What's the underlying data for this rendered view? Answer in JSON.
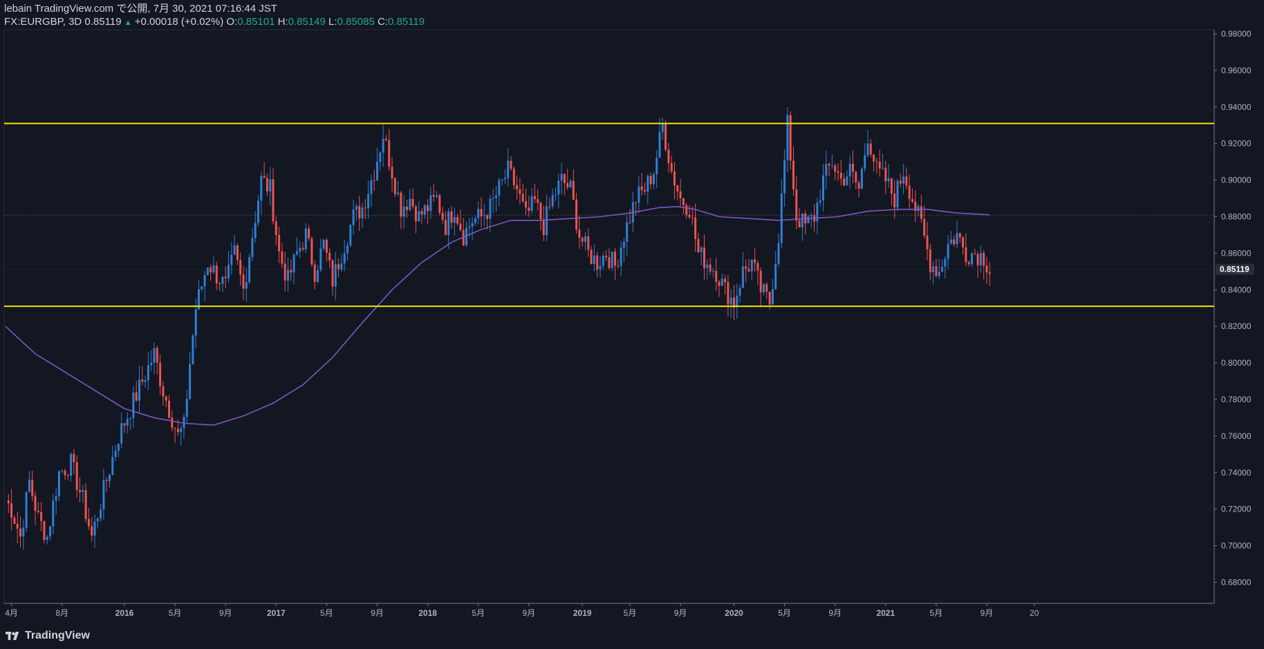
{
  "header": {
    "line1": "lebain TradingView.com で公開, 7月 30, 2021 07:16:44 JST",
    "symbol": "FX:EURGBP, 3D 0.85119",
    "change_icon": "▲",
    "change": "+0.00018 (+0.02%)",
    "o_label": "O:",
    "o_value": "0.85101",
    "h_label": "H:",
    "h_value": "0.85149",
    "l_label": "L:",
    "l_value": "0.85085",
    "c_label": "C:",
    "c_value": "0.85119"
  },
  "footer": {
    "brand": "TradingView",
    "logo_icon": "tradingview-logo-icon"
  },
  "colors": {
    "background": "#131722",
    "up": "#2f7fd6",
    "down": "#ef5350",
    "ma": "#7e57c2",
    "hline": "#f5e400",
    "axis_text": "#b2b5be",
    "price_tag": "#2a2e39"
  },
  "chart_data": {
    "type": "candlestick",
    "symbol": "FX:EURGBP",
    "timeframe": "3D",
    "ylim": [
      0.67,
      0.985
    ],
    "y_ticks": [
      "0.98000",
      "0.96000",
      "0.94000",
      "0.92000",
      "0.90000",
      "0.88000",
      "0.86000",
      "0.84000",
      "0.82000",
      "0.80000",
      "0.78000",
      "0.76000",
      "0.74000",
      "0.72000",
      "0.70000",
      "0.68000"
    ],
    "x_ticks": [
      "4月",
      "8月",
      "2016",
      "5月",
      "9月",
      "2017",
      "5月",
      "9月",
      "2018",
      "5月",
      "9月",
      "2019",
      "5月",
      "9月",
      "2020",
      "5月",
      "9月",
      "2021",
      "5月",
      "9月",
      "20"
    ],
    "current_price": "0.85119",
    "horizontal_lines": [
      0.931,
      0.831
    ],
    "dotted_levels": [
      0.8808
    ],
    "close_path": [
      [
        0,
        0.725
      ],
      [
        2,
        0.72
      ],
      [
        5,
        0.705
      ],
      [
        8,
        0.735
      ],
      [
        11,
        0.715
      ],
      [
        14,
        0.705
      ],
      [
        18,
        0.74
      ],
      [
        22,
        0.745
      ],
      [
        26,
        0.725
      ],
      [
        29,
        0.705
      ],
      [
        33,
        0.73
      ],
      [
        38,
        0.76
      ],
      [
        42,
        0.775
      ],
      [
        46,
        0.79
      ],
      [
        50,
        0.805
      ],
      [
        53,
        0.785
      ],
      [
        56,
        0.77
      ],
      [
        58,
        0.76
      ],
      [
        60,
        0.765
      ],
      [
        62,
        0.8
      ],
      [
        64,
        0.83
      ],
      [
        68,
        0.855
      ],
      [
        71,
        0.848
      ],
      [
        74,
        0.842
      ],
      [
        77,
        0.86
      ],
      [
        80,
        0.84
      ],
      [
        83,
        0.87
      ],
      [
        86,
        0.9
      ],
      [
        89,
        0.895
      ],
      [
        92,
        0.86
      ],
      [
        95,
        0.845
      ],
      [
        98,
        0.86
      ],
      [
        101,
        0.87
      ],
      [
        104,
        0.85
      ],
      [
        107,
        0.865
      ],
      [
        110,
        0.845
      ],
      [
        113,
        0.86
      ],
      [
        117,
        0.88
      ],
      [
        120,
        0.885
      ],
      [
        124,
        0.905
      ],
      [
        127,
        0.925
      ],
      [
        130,
        0.905
      ],
      [
        133,
        0.885
      ],
      [
        136,
        0.89
      ],
      [
        139,
        0.88
      ],
      [
        142,
        0.885
      ],
      [
        145,
        0.89
      ],
      [
        148,
        0.875
      ],
      [
        151,
        0.885
      ],
      [
        154,
        0.87
      ],
      [
        157,
        0.878
      ],
      [
        160,
        0.88
      ],
      [
        163,
        0.885
      ],
      [
        166,
        0.895
      ],
      [
        169,
        0.905
      ],
      [
        172,
        0.895
      ],
      [
        175,
        0.88
      ],
      [
        178,
        0.888
      ],
      [
        181,
        0.875
      ],
      [
        184,
        0.89
      ],
      [
        187,
        0.9
      ],
      [
        190,
        0.895
      ],
      [
        193,
        0.87
      ],
      [
        196,
        0.86
      ],
      [
        199,
        0.855
      ],
      [
        202,
        0.86
      ],
      [
        205,
        0.853
      ],
      [
        208,
        0.87
      ],
      [
        212,
        0.89
      ],
      [
        215,
        0.895
      ],
      [
        218,
        0.905
      ],
      [
        221,
        0.93
      ],
      [
        224,
        0.905
      ],
      [
        227,
        0.89
      ],
      [
        230,
        0.885
      ],
      [
        233,
        0.86
      ],
      [
        236,
        0.855
      ],
      [
        239,
        0.85
      ],
      [
        242,
        0.84
      ],
      [
        245,
        0.833
      ],
      [
        248,
        0.85
      ],
      [
        251,
        0.855
      ],
      [
        254,
        0.84
      ],
      [
        257,
        0.833
      ],
      [
        260,
        0.87
      ],
      [
        263,
        0.93
      ],
      [
        266,
        0.88
      ],
      [
        269,
        0.875
      ],
      [
        272,
        0.88
      ],
      [
        275,
        0.9
      ],
      [
        278,
        0.91
      ],
      [
        281,
        0.9
      ],
      [
        284,
        0.905
      ],
      [
        287,
        0.895
      ],
      [
        290,
        0.925
      ],
      [
        293,
        0.905
      ],
      [
        296,
        0.9
      ],
      [
        299,
        0.89
      ],
      [
        302,
        0.905
      ],
      [
        305,
        0.89
      ],
      [
        308,
        0.875
      ],
      [
        311,
        0.855
      ],
      [
        314,
        0.85
      ],
      [
        317,
        0.865
      ],
      [
        320,
        0.87
      ],
      [
        323,
        0.86
      ],
      [
        326,
        0.86
      ],
      [
        329,
        0.858
      ],
      [
        331,
        0.851
      ]
    ],
    "ma_path": [
      [
        0,
        0.82
      ],
      [
        10,
        0.805
      ],
      [
        20,
        0.795
      ],
      [
        30,
        0.785
      ],
      [
        40,
        0.775
      ],
      [
        50,
        0.77
      ],
      [
        60,
        0.767
      ],
      [
        70,
        0.766
      ],
      [
        80,
        0.771
      ],
      [
        90,
        0.778
      ],
      [
        100,
        0.788
      ],
      [
        110,
        0.803
      ],
      [
        120,
        0.822
      ],
      [
        130,
        0.84
      ],
      [
        140,
        0.855
      ],
      [
        150,
        0.866
      ],
      [
        160,
        0.873
      ],
      [
        170,
        0.878
      ],
      [
        180,
        0.878
      ],
      [
        190,
        0.879
      ],
      [
        200,
        0.88
      ],
      [
        210,
        0.882
      ],
      [
        220,
        0.885
      ],
      [
        226,
        0.8855
      ],
      [
        232,
        0.884
      ],
      [
        240,
        0.88
      ],
      [
        250,
        0.879
      ],
      [
        260,
        0.878
      ],
      [
        270,
        0.879
      ],
      [
        280,
        0.88
      ],
      [
        290,
        0.883
      ],
      [
        300,
        0.884
      ],
      [
        310,
        0.884
      ],
      [
        320,
        0.882
      ],
      [
        331,
        0.881
      ]
    ]
  }
}
